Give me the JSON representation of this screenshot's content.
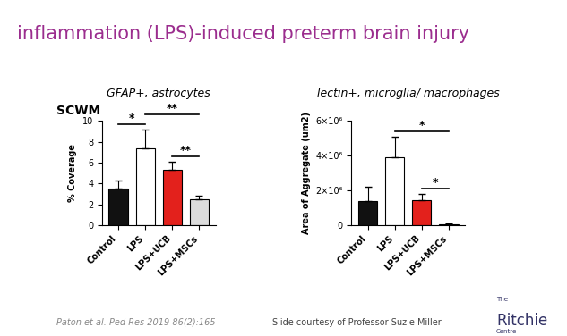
{
  "slide": {
    "title": "inflammation (LPS)-induced preterm brain injury",
    "region": "SCWM",
    "citation": "Paton et al. Ped Res 2019 86(2):165",
    "credit": "Slide courtesy of Professor Suzie Miller",
    "logo": {
      "top": "The",
      "main": "Ritchie",
      "bottom": "Centre"
    }
  },
  "chart_data": [
    {
      "type": "bar",
      "title": "GFAP+, astrocytes",
      "y_label": "% Coverage",
      "categories": [
        "Control",
        "LPS",
        "LPS+UCB",
        "LPS+MSCs"
      ],
      "values": [
        3.5,
        7.4,
        5.3,
        2.5
      ],
      "errors": [
        0.8,
        1.8,
        0.8,
        0.3
      ],
      "colors": [
        "#111111",
        "#ffffff",
        "#e3211c",
        "#dcdcdc"
      ],
      "ylim": [
        0,
        10
      ],
      "yticks": [
        0,
        2,
        4,
        6,
        8,
        10
      ],
      "annotations": [
        {
          "between": [
            "Control",
            "LPS"
          ],
          "label": "*"
        },
        {
          "between": [
            "LPS+UCB",
            "LPS+MSCs"
          ],
          "label": "**"
        },
        {
          "between": [
            "LPS",
            "LPS+MSCs"
          ],
          "label": "**"
        }
      ]
    },
    {
      "type": "bar",
      "title": "lectin+, microglia/ macrophages",
      "y_label": "Area of Aggregate (um2)",
      "categories": [
        "Control",
        "LPS",
        "LPS+UCB",
        "LPS+MSCs"
      ],
      "values": [
        1400000,
        3900000,
        1450000,
        50000
      ],
      "errors": [
        800000,
        1200000,
        350000,
        50000
      ],
      "colors": [
        "#111111",
        "#ffffff",
        "#e3211c",
        "#dcdcdc"
      ],
      "ylim": [
        0,
        6000000
      ],
      "yticks": [
        0,
        {
          "value": 2000000,
          "label": "2×10⁶"
        },
        {
          "value": 4000000,
          "label": "4×10⁶"
        },
        {
          "value": 6000000,
          "label": "6×10⁶"
        }
      ],
      "annotations": [
        {
          "between": [
            "LPS+UCB",
            "LPS+MSCs"
          ],
          "label": "*"
        },
        {
          "between": [
            "LPS",
            "LPS+MSCs"
          ],
          "label": "*"
        }
      ]
    }
  ]
}
